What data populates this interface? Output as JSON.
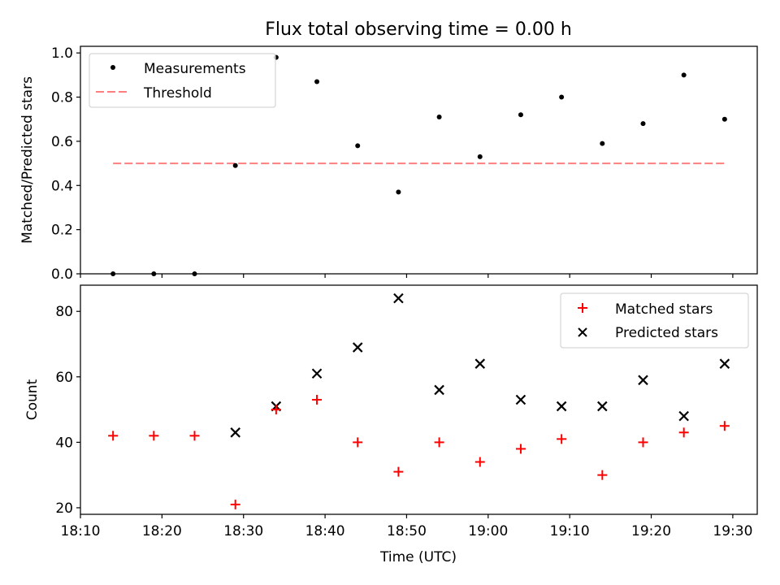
{
  "figure_title": "Flux total observing time = 0.00 h",
  "colors": {
    "measurements": "#000000",
    "threshold": "#ff7f7f",
    "matched": "#ff0000",
    "predicted": "#000000"
  },
  "chart_data": [
    {
      "type": "scatter",
      "title": "Flux total observing time = 0.00 h",
      "xlabel": "",
      "ylabel": "Matched/Predicted stars",
      "xlim": [
        "18:10",
        "19:33"
      ],
      "ylim": [
        0,
        1.03
      ],
      "yticks": [
        0.0,
        0.2,
        0.4,
        0.6,
        0.8,
        1.0
      ],
      "ytick_labels": [
        "0.0",
        "0.2",
        "0.4",
        "0.6",
        "0.8",
        "1.0"
      ],
      "legend": {
        "placement": "upper-left",
        "entries": [
          "Measurements",
          "Threshold"
        ]
      },
      "series": [
        {
          "name": "Measurements",
          "marker": "dot",
          "x": [
            "18:14",
            "18:19",
            "18:24",
            "18:29",
            "18:34",
            "18:39",
            "18:44",
            "18:49",
            "18:54",
            "18:59",
            "19:04",
            "19:09",
            "19:14",
            "19:19",
            "19:24",
            "19:29"
          ],
          "y": [
            0.0,
            0.0,
            0.0,
            0.49,
            0.98,
            0.87,
            0.58,
            0.37,
            0.71,
            0.53,
            0.72,
            0.8,
            0.59,
            0.68,
            0.9,
            0.7
          ]
        },
        {
          "name": "Threshold",
          "marker": "dashed-line",
          "x": [
            "18:14",
            "19:29"
          ],
          "y": [
            0.5,
            0.5
          ]
        }
      ]
    },
    {
      "type": "scatter",
      "xlabel": "Time (UTC)",
      "ylabel": "Count",
      "xlim": [
        "18:10",
        "19:33"
      ],
      "ylim": [
        18,
        88
      ],
      "xticks": [
        "18:10",
        "18:20",
        "18:30",
        "18:40",
        "18:50",
        "19:00",
        "19:10",
        "19:20",
        "19:30"
      ],
      "yticks": [
        20,
        40,
        60,
        80
      ],
      "ytick_labels": [
        "20",
        "40",
        "60",
        "80"
      ],
      "legend": {
        "placement": "upper-right",
        "entries": [
          "Matched stars",
          "Predicted stars"
        ]
      },
      "series": [
        {
          "name": "Matched stars",
          "marker": "plus",
          "x": [
            "18:14",
            "18:19",
            "18:24",
            "18:29",
            "18:34",
            "18:39",
            "18:44",
            "18:49",
            "18:54",
            "18:59",
            "19:04",
            "19:09",
            "19:14",
            "19:19",
            "19:24",
            "19:29"
          ],
          "y": [
            42,
            42,
            42,
            21,
            50,
            53,
            40,
            31,
            40,
            34,
            38,
            41,
            30,
            40,
            43,
            45
          ]
        },
        {
          "name": "Predicted stars",
          "marker": "x",
          "x": [
            "18:29",
            "18:34",
            "18:39",
            "18:44",
            "18:49",
            "18:54",
            "18:59",
            "19:04",
            "19:09",
            "19:14",
            "19:19",
            "19:24",
            "19:29"
          ],
          "y": [
            43,
            51,
            61,
            69,
            84,
            56,
            64,
            53,
            51,
            51,
            59,
            48,
            64
          ]
        }
      ]
    }
  ]
}
